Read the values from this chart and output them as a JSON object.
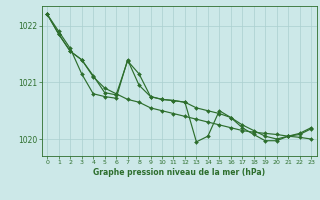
{
  "xlabel": "Graphe pression niveau de la mer (hPa)",
  "bg_color": "#cce8e8",
  "line_color": "#2d6e2d",
  "grid_color": "#aacfcf",
  "ylim": [
    1019.7,
    1022.35
  ],
  "xlim": [
    -0.5,
    23.5
  ],
  "yticks": [
    1020,
    1021,
    1022
  ],
  "xticks": [
    0,
    1,
    2,
    3,
    4,
    5,
    6,
    7,
    8,
    9,
    10,
    11,
    12,
    13,
    14,
    15,
    16,
    17,
    18,
    19,
    20,
    21,
    22,
    23
  ],
  "series1_x": [
    0,
    1,
    2,
    3,
    4,
    5,
    6,
    7,
    8,
    9,
    10,
    11,
    12,
    13,
    14,
    15,
    16,
    17,
    18,
    19,
    20,
    21,
    22,
    23
  ],
  "series1_y": [
    1022.2,
    1021.85,
    1021.55,
    1021.4,
    1021.1,
    1020.9,
    1020.8,
    1020.7,
    1020.65,
    1020.55,
    1020.5,
    1020.45,
    1020.4,
    1020.35,
    1020.3,
    1020.25,
    1020.2,
    1020.15,
    1020.12,
    1020.1,
    1020.08,
    1020.05,
    1020.03,
    1020.0
  ],
  "series2_x": [
    0,
    1,
    2,
    3,
    4,
    5,
    6,
    7,
    8,
    9,
    10,
    11,
    12,
    13,
    14,
    15,
    16,
    17,
    18,
    19,
    20,
    21,
    22,
    23
  ],
  "series2_y": [
    1022.2,
    1021.9,
    1021.6,
    1021.15,
    1020.8,
    1020.75,
    1020.72,
    1021.4,
    1020.95,
    1020.75,
    1020.7,
    1020.68,
    1020.65,
    1019.95,
    1020.05,
    1020.5,
    1020.38,
    1020.2,
    1020.08,
    1019.97,
    1019.97,
    1020.05,
    1020.1,
    1020.2
  ],
  "series3_x": [
    0,
    1,
    2,
    3,
    4,
    5,
    6,
    7,
    8,
    9,
    10,
    11,
    12,
    13,
    14,
    15,
    16,
    17,
    18,
    19,
    20,
    21,
    22,
    23
  ],
  "series3_y": [
    1022.2,
    1021.85,
    1021.55,
    1021.4,
    1021.12,
    1020.82,
    1020.78,
    1021.38,
    1021.15,
    1020.75,
    1020.7,
    1020.68,
    1020.65,
    1020.55,
    1020.5,
    1020.45,
    1020.38,
    1020.25,
    1020.15,
    1020.05,
    1020.0,
    1020.05,
    1020.08,
    1020.18
  ]
}
